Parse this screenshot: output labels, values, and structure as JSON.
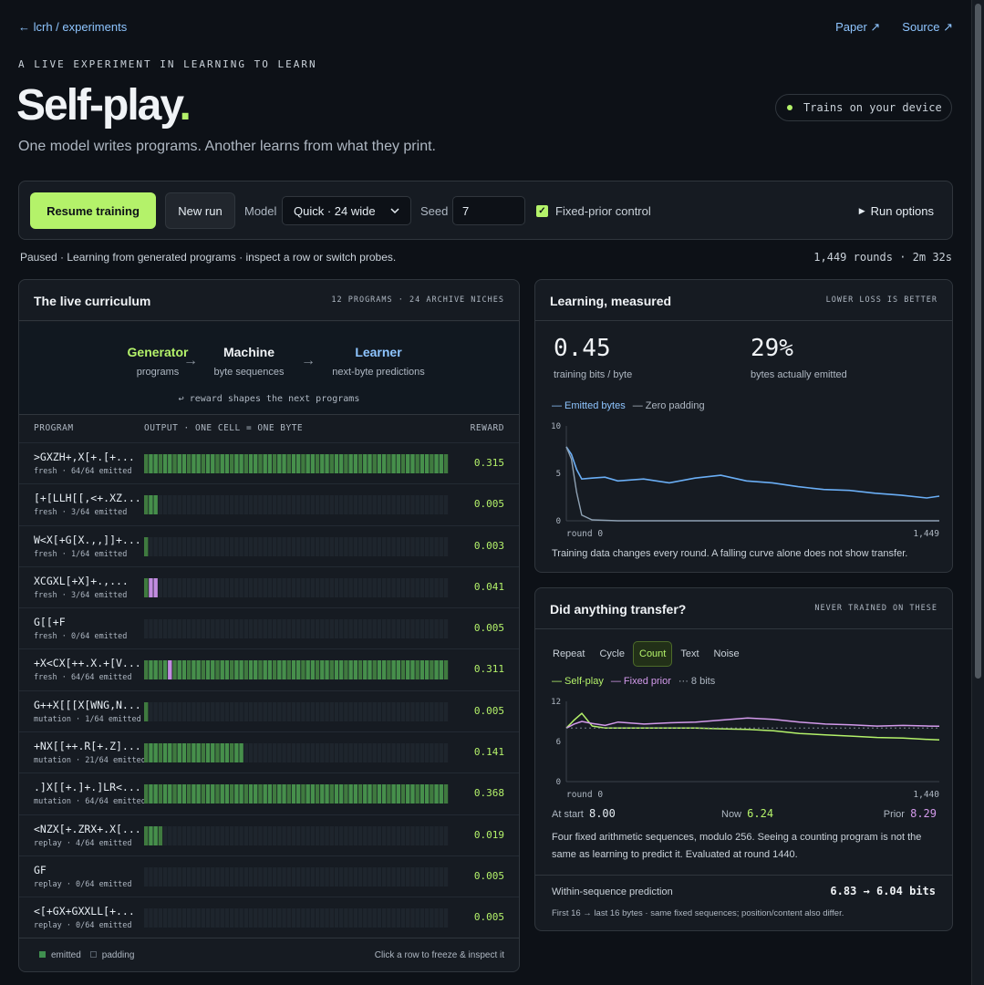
{
  "nav": {
    "back": "← lcrh / experiments",
    "paper": "Paper ↗",
    "source": "Source ↗"
  },
  "hero": {
    "eyebrow": "A LIVE EXPERIMENT IN LEARNING TO LEARN",
    "title": "Self-play",
    "title_dot": ".",
    "subtitle": "One model writes programs. Another learns from what they print.",
    "device": "Trains on your device"
  },
  "controls": {
    "resume": "Resume training",
    "new_run": "New run",
    "model_label": "Model",
    "model_value": "Quick · 24 wide",
    "seed_label": "Seed",
    "seed_value": "7",
    "fixed_prior": "Fixed-prior control",
    "run_options": "Run options"
  },
  "status": {
    "text": "Paused · Learning from generated programs · inspect a row or switch probes.",
    "rounds": "1,449 rounds · 2m 32s"
  },
  "colors": {
    "accent": "#b4f26a",
    "link": "#8ec5ff",
    "emitted": "#3f8f4f",
    "fixed_prior": "#d39aeb"
  },
  "curriculum": {
    "title": "The live curriculum",
    "meta": "12 PROGRAMS · 24 ARCHIVE NICHES",
    "flow": [
      {
        "name": "Generator",
        "sub": "programs",
        "color": "#b4f26a"
      },
      {
        "name": "Machine",
        "sub": "byte sequences",
        "color": "#f0f3f6"
      },
      {
        "name": "Learner",
        "sub": "next-byte predictions",
        "color": "#8ec5ff"
      }
    ],
    "reward_note": "↩ reward shapes the next programs",
    "col_program": "PROGRAM",
    "col_output": "OUTPUT · ONE CELL = ONE BYTE",
    "col_reward": "REWARD",
    "rows": [
      {
        "code": ">GXZH+,X[+.[+...",
        "meta": "fresh · 64/64 emitted",
        "emitted": 64,
        "purple": [],
        "reward": "0.315"
      },
      {
        "code": "[+[LLH[[,<+.XZ...",
        "meta": "fresh · 3/64 emitted",
        "emitted": 3,
        "purple": [],
        "reward": "0.005"
      },
      {
        "code": "W<X[+G[X.,,]]+...",
        "meta": "fresh · 1/64 emitted",
        "emitted": 1,
        "purple": [],
        "reward": "0.003"
      },
      {
        "code": "XCGXL[+X]+.,...",
        "meta": "fresh · 3/64 emitted",
        "emitted": 3,
        "purple": [
          1,
          2
        ],
        "reward": "0.041"
      },
      {
        "code": "G[[+F",
        "meta": "fresh · 0/64 emitted",
        "emitted": 0,
        "purple": [],
        "reward": "0.005"
      },
      {
        "code": "+X<CX[++.X.+[V...",
        "meta": "fresh · 64/64 emitted",
        "emitted": 64,
        "purple": [
          5
        ],
        "reward": "0.311"
      },
      {
        "code": "G++X[[[X[WNG,N...",
        "meta": "mutation · 1/64 emitted",
        "emitted": 1,
        "purple": [],
        "reward": "0.005"
      },
      {
        "code": "+NX[[++.R[+.Z]...",
        "meta": "mutation · 21/64 emitted",
        "emitted": 21,
        "purple": [],
        "reward": "0.141"
      },
      {
        "code": ".]X[[+.]+.]LR<...",
        "meta": "mutation · 64/64 emitted",
        "emitted": 64,
        "purple": [],
        "reward": "0.368"
      },
      {
        "code": "<NZX[+.ZRX+.X[...",
        "meta": "replay · 4/64 emitted",
        "emitted": 4,
        "purple": [],
        "reward": "0.019"
      },
      {
        "code": "GF",
        "meta": "replay · 0/64 emitted",
        "emitted": 0,
        "purple": [],
        "reward": "0.005"
      },
      {
        "code": "<[+GX+GXXLL[+...",
        "meta": "replay · 0/64 emitted",
        "emitted": 0,
        "purple": [],
        "reward": "0.005"
      }
    ],
    "legend_emitted": "emitted",
    "legend_padding": "padding",
    "footer_hint": "Click a row to freeze & inspect it"
  },
  "learning": {
    "title": "Learning, measured",
    "meta": "LOWER LOSS IS BETTER",
    "stat1_value": "0.45",
    "stat1_label": "training bits / byte",
    "stat2_value": "29%",
    "stat2_label": "bytes actually emitted",
    "legend_emitted": "— Emitted bytes",
    "legend_zero": "— Zero padding",
    "caption": "Training data changes every round. A falling curve alone does not show transfer."
  },
  "transfer": {
    "title": "Did anything transfer?",
    "meta": "NEVER TRAINED ON THESE",
    "tabs": [
      "Repeat",
      "Cycle",
      "Count",
      "Text",
      "Noise"
    ],
    "active_tab": "Count",
    "legend_self": "— Self-play",
    "legend_prior": "— Fixed prior",
    "legend_bits": "··· 8 bits",
    "start_label": "At start",
    "start_value": "8.00",
    "now_label": "Now",
    "now_value": "6.24",
    "prior_label": "Prior",
    "prior_value": "8.29",
    "caption": "Four fixed arithmetic sequences, modulo 256. Seeing a counting program is not the same as learning to predict it. Evaluated at round 1440.",
    "within_label": "Within-sequence prediction",
    "within_value": "6.83 → 6.04 bits",
    "within_note": "First 16 → last 16 bytes · same fixed sequences; position/content also differ."
  },
  "chart_data": [
    {
      "type": "line",
      "x": [
        0,
        20,
        40,
        60,
        100,
        150,
        200,
        300,
        400,
        500,
        600,
        700,
        800,
        900,
        1000,
        1100,
        1200,
        1300,
        1400,
        1449
      ],
      "series": [
        {
          "name": "Emitted bytes",
          "values": [
            7.8,
            7.0,
            5.4,
            4.4,
            4.5,
            4.6,
            4.2,
            4.4,
            4.0,
            4.5,
            4.8,
            4.2,
            4.0,
            3.6,
            3.3,
            3.2,
            2.9,
            2.7,
            2.4,
            2.6
          ]
        },
        {
          "name": "Zero padding",
          "values": [
            7.8,
            6.5,
            3.0,
            0.6,
            0.1,
            0.05,
            0,
            0,
            0,
            0,
            0,
            0,
            0,
            0,
            0,
            0,
            0,
            0,
            0,
            0
          ]
        }
      ],
      "ylim": [
        0,
        10
      ],
      "y_ticks": [
        "10",
        "5",
        "0"
      ],
      "x_ticks": [
        "round 0",
        "1,449"
      ]
    },
    {
      "type": "line",
      "x": [
        0,
        30,
        60,
        100,
        150,
        200,
        300,
        400,
        500,
        600,
        700,
        800,
        900,
        1000,
        1100,
        1200,
        1300,
        1400,
        1440
      ],
      "series": [
        {
          "name": "Self-play",
          "values": [
            8.0,
            9.2,
            10.2,
            8.3,
            8.0,
            8.0,
            8.0,
            8.0,
            8.0,
            7.9,
            7.8,
            7.6,
            7.2,
            7.0,
            6.8,
            6.6,
            6.5,
            6.3,
            6.24
          ]
        },
        {
          "name": "Fixed prior",
          "values": [
            8.0,
            8.6,
            9.0,
            8.7,
            8.4,
            8.9,
            8.6,
            8.8,
            8.9,
            9.2,
            9.5,
            9.3,
            8.9,
            8.6,
            8.5,
            8.3,
            8.4,
            8.3,
            8.29
          ]
        },
        {
          "name": "8 bits",
          "values": [
            8,
            8,
            8,
            8,
            8,
            8,
            8,
            8,
            8,
            8,
            8,
            8,
            8,
            8,
            8,
            8,
            8,
            8,
            8
          ]
        }
      ],
      "ylim": [
        0,
        12
      ],
      "y_ticks": [
        "12",
        "6",
        "0"
      ],
      "x_ticks": [
        "round 0",
        "1,440"
      ]
    }
  ]
}
